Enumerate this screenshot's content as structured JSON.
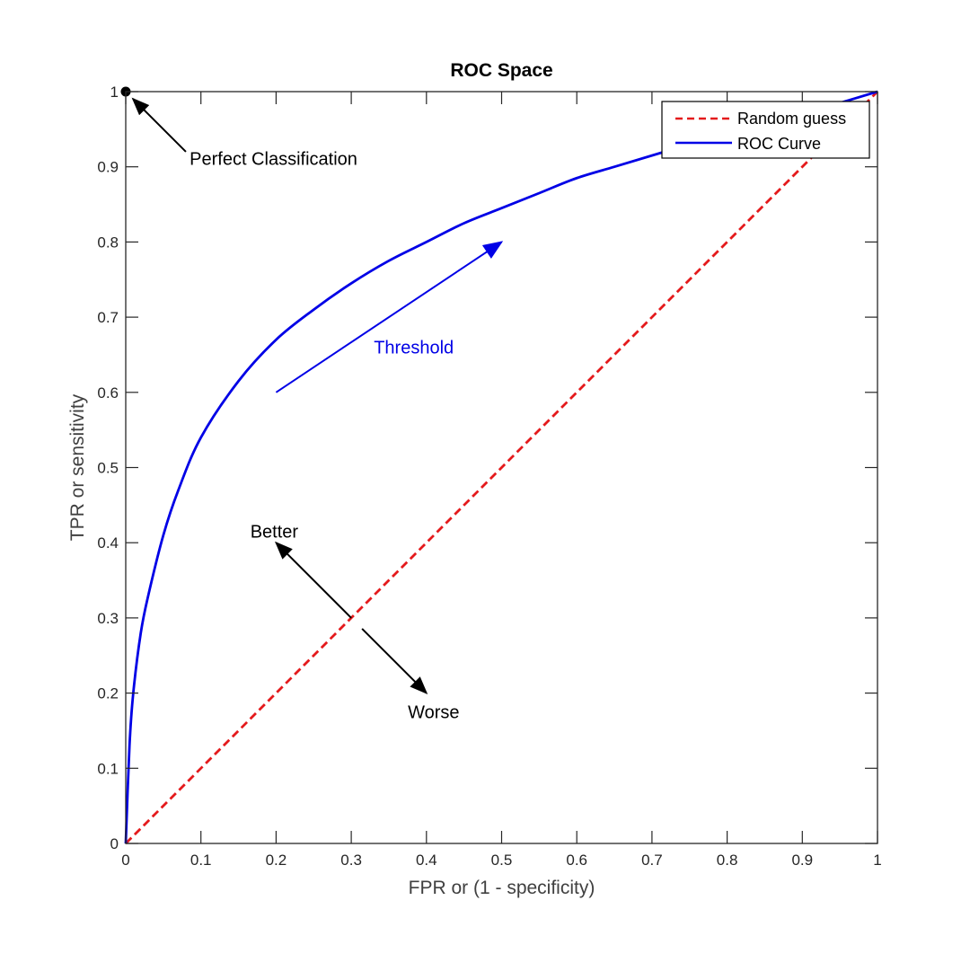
{
  "chart_data": {
    "type": "line",
    "title": "ROC Space",
    "xlabel": "FPR or (1 - specificity)",
    "ylabel": "TPR or sensitivity",
    "xlim": [
      0,
      1
    ],
    "ylim": [
      0,
      1
    ],
    "xticks": [
      0,
      0.1,
      0.2,
      0.3,
      0.4,
      0.5,
      0.6,
      0.7,
      0.8,
      0.9,
      1
    ],
    "yticks": [
      0,
      0.1,
      0.2,
      0.3,
      0.4,
      0.5,
      0.6,
      0.7,
      0.8,
      0.9,
      1
    ],
    "xtick_labels": [
      "0",
      "0.1",
      "0.2",
      "0.3",
      "0.4",
      "0.5",
      "0.6",
      "0.7",
      "0.8",
      "0.9",
      "1"
    ],
    "ytick_labels": [
      "0",
      "0.1",
      "0.2",
      "0.3",
      "0.4",
      "0.5",
      "0.6",
      "0.7",
      "0.8",
      "0.9",
      "1"
    ],
    "grid": false,
    "legend_position": "top-right",
    "series": [
      {
        "name": "Random guess",
        "style": "dashed",
        "color": "#e41a1c",
        "x": [
          0,
          1
        ],
        "y": [
          0,
          1
        ]
      },
      {
        "name": "ROC Curve",
        "style": "solid",
        "color": "#0000e6",
        "x": [
          0,
          0.005,
          0.01,
          0.02,
          0.03,
          0.05,
          0.07,
          0.1,
          0.15,
          0.2,
          0.25,
          0.3,
          0.35,
          0.4,
          0.45,
          0.5,
          0.55,
          0.6,
          0.65,
          0.7,
          0.75,
          0.8,
          0.85,
          0.9,
          0.95,
          1
        ],
        "y": [
          0,
          0.13,
          0.2,
          0.28,
          0.33,
          0.41,
          0.47,
          0.54,
          0.615,
          0.67,
          0.71,
          0.745,
          0.775,
          0.8,
          0.825,
          0.845,
          0.865,
          0.885,
          0.9,
          0.915,
          0.93,
          0.945,
          0.96,
          0.97,
          0.985,
          1
        ]
      }
    ],
    "annotations": {
      "perfect": {
        "text": "Perfect Classification",
        "point": [
          0,
          1
        ],
        "arrow_from": [
          0.08,
          0.92
        ],
        "text_at": [
          0.085,
          0.91
        ]
      },
      "threshold": {
        "text": "Threshold",
        "color": "#0000e6",
        "arrow_from": [
          0.2,
          0.6
        ],
        "arrow_to": [
          0.5,
          0.8
        ],
        "text_at": [
          0.33,
          0.66
        ]
      },
      "better": {
        "text": "Better",
        "arrow_from": [
          0.3,
          0.3
        ],
        "arrow_to": [
          0.2,
          0.4
        ],
        "text_at": [
          0.2,
          0.415
        ]
      },
      "worse": {
        "text": "Worse",
        "arrow_from": [
          0.3,
          0.3
        ],
        "arrow_to": [
          0.4,
          0.2
        ],
        "text_at": [
          0.4,
          0.175
        ]
      }
    }
  }
}
